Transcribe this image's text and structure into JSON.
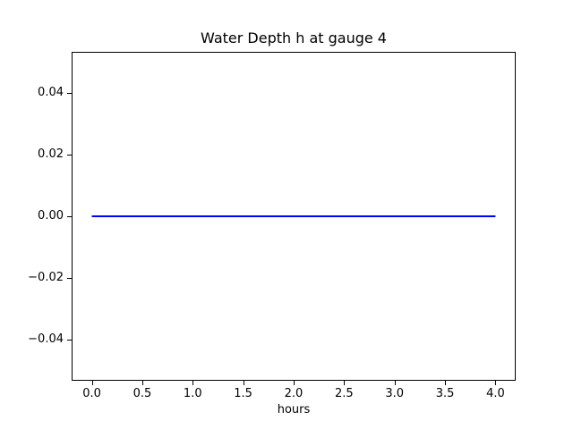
{
  "figure": {
    "background_color": "#ffffff",
    "axis_color": "#000000",
    "text_color": "#000000"
  },
  "chart_data": {
    "type": "line",
    "title": "Water Depth h at gauge 4",
    "xlabel": "hours",
    "ylabel": "",
    "xlim": [
      -0.2,
      4.2
    ],
    "ylim": [
      -0.0535,
      0.0535
    ],
    "grid": false,
    "legend": null,
    "xticks": [
      {
        "value": 0.0,
        "label": "0.0"
      },
      {
        "value": 0.5,
        "label": "0.5"
      },
      {
        "value": 1.0,
        "label": "1.0"
      },
      {
        "value": 1.5,
        "label": "1.5"
      },
      {
        "value": 2.0,
        "label": "2.0"
      },
      {
        "value": 2.5,
        "label": "2.5"
      },
      {
        "value": 3.0,
        "label": "3.0"
      },
      {
        "value": 3.5,
        "label": "3.5"
      },
      {
        "value": 4.0,
        "label": "4.0"
      }
    ],
    "yticks": [
      {
        "value": 0.04,
        "label": "0.04"
      },
      {
        "value": 0.02,
        "label": "0.02"
      },
      {
        "value": 0.0,
        "label": "0.00"
      },
      {
        "value": -0.02,
        "label": "−0.02"
      },
      {
        "value": -0.04,
        "label": "−0.04"
      }
    ],
    "series": [
      {
        "name": "water-depth-h",
        "color": "#0000ff",
        "line_width": 2,
        "x": [
          0.0,
          4.0
        ],
        "y": [
          0.0,
          0.0
        ]
      }
    ]
  }
}
